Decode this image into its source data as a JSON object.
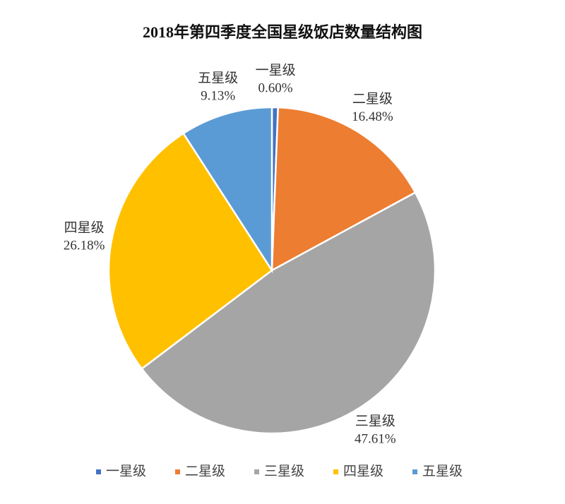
{
  "chart_data": {
    "type": "pie",
    "title": "2018年第四季度全国星级饭店数量结构图",
    "categories": [
      "一星级",
      "二星级",
      "三星级",
      "四星级",
      "五星级"
    ],
    "values": [
      0.6,
      16.48,
      47.61,
      26.18,
      9.13
    ],
    "value_labels": [
      "0.60%",
      "16.48%",
      "47.61%",
      "26.18%",
      "9.13%"
    ],
    "colors": [
      "#4472c4",
      "#ed7d31",
      "#a5a5a5",
      "#ffc000",
      "#5b9bd5"
    ],
    "legend": "bottom"
  }
}
